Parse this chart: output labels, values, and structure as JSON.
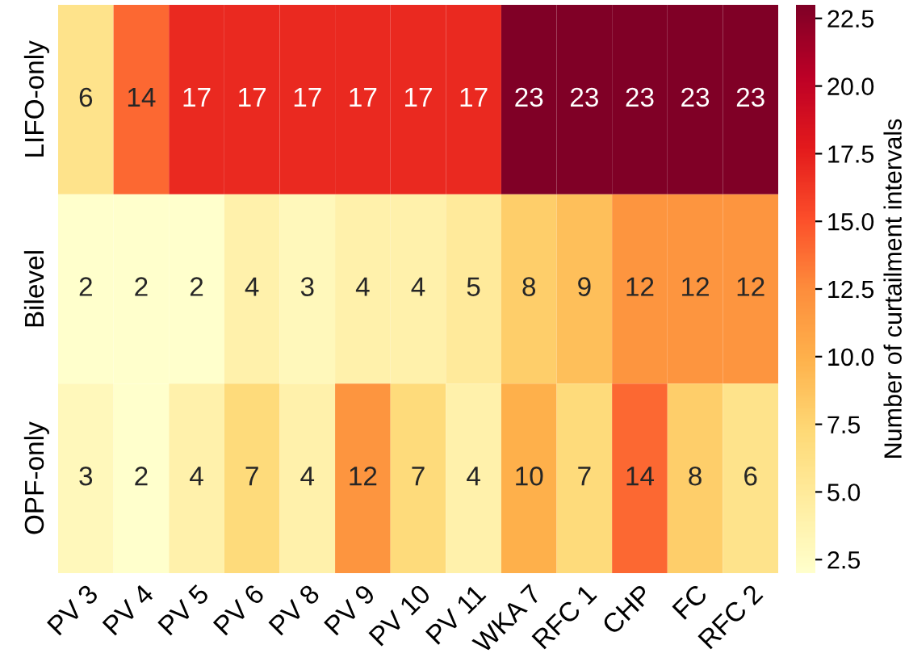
{
  "chart_data": {
    "type": "heatmap",
    "categories": [
      "PV 3",
      "PV 4",
      "PV 5",
      "PV 6",
      "PV 8",
      "PV 9",
      "PV 10",
      "PV 11",
      "WKA 7",
      "RFC 1",
      "CHP",
      "FC",
      "RFC 2"
    ],
    "y_categories": [
      "LIFO-only",
      "Bilevel",
      "OPF-only"
    ],
    "cells": [
      [
        6,
        14,
        17,
        17,
        17,
        17,
        17,
        17,
        23,
        23,
        23,
        23,
        23
      ],
      [
        2,
        2,
        2,
        4,
        3,
        4,
        4,
        5,
        8,
        9,
        12,
        12,
        12
      ],
      [
        3,
        2,
        4,
        7,
        4,
        12,
        7,
        4,
        10,
        7,
        14,
        8,
        6
      ]
    ],
    "data_labels": true,
    "clabel": "Number of curtailment intervals",
    "clim": [
      2,
      23
    ],
    "cticks": [
      {
        "value": 2.5,
        "label": "2.5"
      },
      {
        "value": 5,
        "label": "5.0"
      },
      {
        "value": 7.5,
        "label": "7.5"
      },
      {
        "value": 10,
        "label": "10.0"
      },
      {
        "value": 12.5,
        "label": "12.5"
      },
      {
        "value": 15,
        "label": "15.0"
      },
      {
        "value": 17.5,
        "label": "17.5"
      },
      {
        "value": 20,
        "label": "20.0"
      },
      {
        "value": 22.5,
        "label": "22.5"
      }
    ]
  }
}
